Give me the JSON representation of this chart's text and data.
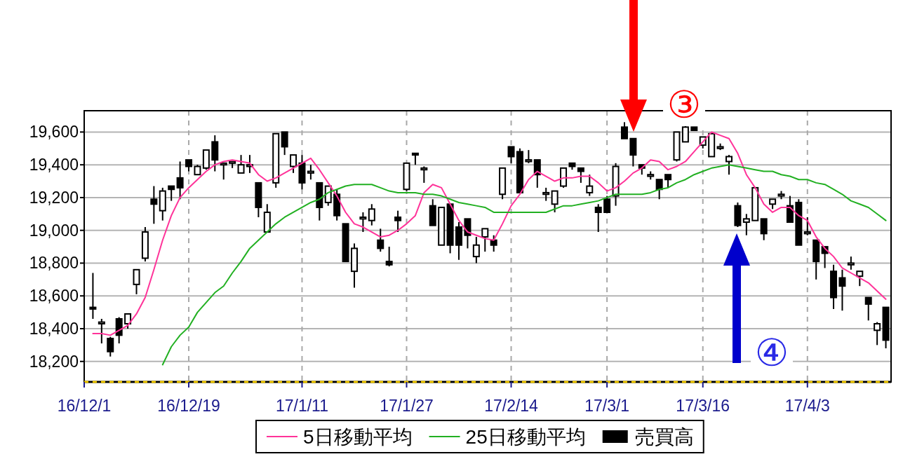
{
  "chart_data": {
    "type": "candlestick",
    "categories": [
      "16/12/1",
      null,
      null,
      null,
      null,
      null,
      null,
      null,
      null,
      null,
      null,
      null,
      "16/12/19",
      null,
      null,
      null,
      null,
      null,
      null,
      null,
      null,
      null,
      null,
      null,
      null,
      "17/1/11",
      null,
      null,
      null,
      null,
      null,
      null,
      null,
      null,
      null,
      null,
      null,
      "17/1/27",
      null,
      null,
      null,
      null,
      null,
      null,
      null,
      null,
      null,
      null,
      null,
      "17/2/14",
      null,
      null,
      null,
      null,
      null,
      null,
      null,
      null,
      null,
      null,
      "17/3/1",
      null,
      null,
      null,
      null,
      null,
      null,
      null,
      null,
      null,
      null,
      "17/3/16",
      null,
      null,
      null,
      null,
      null,
      null,
      null,
      null,
      null,
      null,
      null,
      "17/4/3",
      null,
      null,
      null,
      null,
      null,
      null,
      null,
      null,
      null
    ],
    "ylim": [
      18075,
      19730
    ],
    "yticks": [
      {
        "value": 18200,
        "label": "18,200"
      },
      {
        "value": 18400,
        "label": "18,400"
      },
      {
        "value": 18600,
        "label": "18,600"
      },
      {
        "value": 18800,
        "label": "18,800"
      },
      {
        "value": 19000,
        "label": "19,000"
      },
      {
        "value": 19200,
        "label": "19,200"
      },
      {
        "value": 19400,
        "label": "19,400"
      },
      {
        "value": 19600,
        "label": "19,600"
      }
    ],
    "grid": true,
    "legend": "bottom",
    "annotations": [
      "③",
      "④"
    ],
    "series": [
      {
        "name": "5日移動平均",
        "type": "line",
        "color": "#ff3399",
        "values": [
          null,
          18370,
          18370,
          18360,
          18390,
          18420,
          18490,
          18590,
          18760,
          18940,
          19090,
          19200,
          19260,
          19310,
          19360,
          19400,
          19420,
          19430,
          19420,
          19410,
          19340,
          19300,
          19320,
          19350,
          19380,
          19410,
          19440,
          19370,
          19290,
          19210,
          19110,
          19040,
          19020,
          18990,
          18960,
          18970,
          19000,
          19040,
          19090,
          19230,
          19280,
          19260,
          19160,
          19060,
          18990,
          18970,
          18950,
          18940,
          19040,
          19150,
          19220,
          19310,
          19360,
          19330,
          19300,
          19320,
          19320,
          19330,
          19330,
          19290,
          19240,
          19260,
          19300,
          19350,
          19380,
          19430,
          19420,
          19370,
          19390,
          19420,
          19480,
          19540,
          19600,
          19580,
          19560,
          19470,
          19340,
          19260,
          19160,
          19110,
          19140,
          19140,
          19090,
          19060,
          18960,
          18890,
          18840,
          18770,
          18740,
          18710,
          18680,
          18630,
          18580
        ]
      },
      {
        "name": "25日移動平均",
        "type": "line",
        "color": "#22b022",
        "values": [
          null,
          null,
          null,
          null,
          null,
          null,
          null,
          null,
          null,
          18180,
          18290,
          18360,
          18410,
          18500,
          18560,
          18620,
          18660,
          18740,
          18810,
          18890,
          18940,
          18990,
          19040,
          19080,
          19110,
          19140,
          19170,
          19190,
          19230,
          19250,
          19270,
          19280,
          19280,
          19280,
          19260,
          19240,
          19230,
          19230,
          19230,
          19220,
          19220,
          19210,
          19190,
          19170,
          19160,
          19150,
          19140,
          19110,
          19110,
          19110,
          19110,
          19110,
          19110,
          19110,
          19130,
          19150,
          19150,
          19160,
          19170,
          19180,
          19200,
          19220,
          19220,
          19220,
          19220,
          19230,
          19250,
          19260,
          19290,
          19310,
          19340,
          19360,
          19380,
          19390,
          19400,
          19390,
          19380,
          19370,
          19360,
          19360,
          19340,
          19330,
          19310,
          19310,
          19290,
          19280,
          19250,
          19220,
          19180,
          19160,
          19140,
          19100,
          19060
        ]
      },
      {
        "name": "売買高",
        "type": "candlestick",
        "color": "#000000",
        "ohlc": [
          null,
          [
            18530,
            18740,
            18460,
            18520
          ],
          [
            18430,
            18460,
            18310,
            18440
          ],
          [
            18340,
            18350,
            18230,
            18260
          ],
          [
            18460,
            18470,
            18310,
            18360
          ],
          [
            18430,
            18490,
            18400,
            18490
          ],
          [
            18670,
            18760,
            18610,
            18760
          ],
          [
            18830,
            19020,
            18810,
            18990
          ],
          [
            19190,
            19270,
            19040,
            19160
          ],
          [
            19120,
            19260,
            19060,
            19240
          ],
          [
            19270,
            19270,
            19180,
            19250
          ],
          [
            19320,
            19420,
            19190,
            19260
          ],
          [
            19430,
            19430,
            19360,
            19390
          ],
          [
            19340,
            19400,
            19340,
            19390
          ],
          [
            19380,
            19490,
            19370,
            19490
          ],
          [
            19540,
            19580,
            19360,
            19430
          ],
          [
            19400,
            19410,
            19310,
            19410
          ],
          [
            19410,
            19420,
            19380,
            19420
          ],
          [
            19350,
            19460,
            19350,
            19400
          ],
          [
            19390,
            19460,
            19350,
            19400
          ],
          [
            19290,
            19290,
            19080,
            19140
          ],
          [
            18990,
            19160,
            18990,
            19110
          ],
          [
            19290,
            19590,
            19260,
            19590
          ],
          [
            19600,
            19600,
            19460,
            19510
          ],
          [
            19390,
            19460,
            19350,
            19460
          ],
          [
            19410,
            19460,
            19250,
            19290
          ],
          [
            19350,
            19400,
            19310,
            19360
          ],
          [
            19290,
            19290,
            19060,
            19140
          ],
          [
            19170,
            19270,
            19150,
            19270
          ],
          [
            19220,
            19250,
            19060,
            19090
          ],
          [
            19040,
            19040,
            18810,
            18810
          ],
          [
            18750,
            18920,
            18650,
            18890
          ],
          [
            19070,
            19110,
            18990,
            19080
          ],
          [
            19060,
            19160,
            19030,
            19130
          ],
          [
            18940,
            19010,
            18870,
            18890
          ],
          [
            18810,
            18900,
            18780,
            18790
          ],
          [
            19080,
            19120,
            18990,
            19060
          ],
          [
            19250,
            19410,
            19240,
            19410
          ],
          [
            19470,
            19470,
            19400,
            19460
          ],
          [
            19370,
            19390,
            19290,
            19380
          ],
          [
            19150,
            19190,
            19030,
            19030
          ],
          [
            18910,
            19140,
            18910,
            19140
          ],
          [
            19160,
            19160,
            18860,
            18910
          ],
          [
            19020,
            19050,
            18820,
            18910
          ],
          [
            19070,
            19070,
            18890,
            18970
          ],
          [
            18840,
            18960,
            18800,
            18910
          ],
          [
            18960,
            19010,
            18870,
            19010
          ],
          [
            18940,
            18970,
            18870,
            18910
          ],
          [
            19220,
            19380,
            19190,
            19380
          ],
          [
            19510,
            19510,
            19410,
            19450
          ],
          [
            19480,
            19500,
            19230,
            19230
          ],
          [
            19420,
            19490,
            19410,
            19430
          ],
          [
            19430,
            19430,
            19260,
            19340
          ],
          [
            19220,
            19260,
            19180,
            19230
          ],
          [
            19160,
            19240,
            19110,
            19240
          ],
          [
            19270,
            19380,
            19260,
            19380
          ],
          [
            19410,
            19410,
            19370,
            19390
          ],
          [
            19380,
            19380,
            19290,
            19360
          ],
          [
            19230,
            19340,
            19210,
            19270
          ],
          [
            19140,
            19160,
            18990,
            19110
          ],
          [
            19190,
            19210,
            19110,
            19110
          ],
          [
            19210,
            19410,
            19150,
            19390
          ],
          [
            19630,
            19660,
            19560,
            19560
          ],
          [
            19560,
            19560,
            19390,
            19460
          ],
          [
            19400,
            19400,
            19340,
            19380
          ],
          [
            19330,
            19360,
            19310,
            19340
          ],
          [
            19310,
            19310,
            19190,
            19250
          ],
          [
            19340,
            19340,
            19260,
            19310
          ],
          [
            19430,
            19600,
            19420,
            19600
          ],
          [
            19540,
            19640,
            19540,
            19630
          ],
          [
            19630,
            19630,
            19610,
            19610
          ],
          [
            19520,
            19570,
            19500,
            19570
          ],
          [
            19450,
            19600,
            19450,
            19590
          ],
          [
            19500,
            19530,
            19490,
            19510
          ],
          [
            19420,
            19460,
            19340,
            19450
          ],
          [
            19150,
            19170,
            19020,
            19030
          ],
          [
            19050,
            19100,
            18970,
            19070
          ],
          [
            19060,
            19260,
            19060,
            19260
          ],
          [
            19070,
            19070,
            18940,
            18980
          ],
          [
            19160,
            19190,
            19130,
            19190
          ],
          [
            19210,
            19240,
            19190,
            19220
          ],
          [
            19150,
            19210,
            19050,
            19050
          ],
          [
            19170,
            19190,
            18910,
            18910
          ],
          [
            18980,
            19080,
            18970,
            18990
          ],
          [
            18940,
            18940,
            18700,
            18810
          ],
          [
            18900,
            18900,
            18770,
            18860
          ],
          [
            18750,
            18790,
            18520,
            18590
          ],
          [
            18710,
            18760,
            18510,
            18660
          ],
          [
            18790,
            18840,
            18760,
            18800
          ],
          [
            18720,
            18750,
            18660,
            18750
          ],
          [
            18590,
            18590,
            18450,
            18550
          ],
          [
            18390,
            18440,
            18300,
            18430
          ],
          [
            18530,
            18530,
            18280,
            18330
          ]
        ]
      }
    ]
  }
}
